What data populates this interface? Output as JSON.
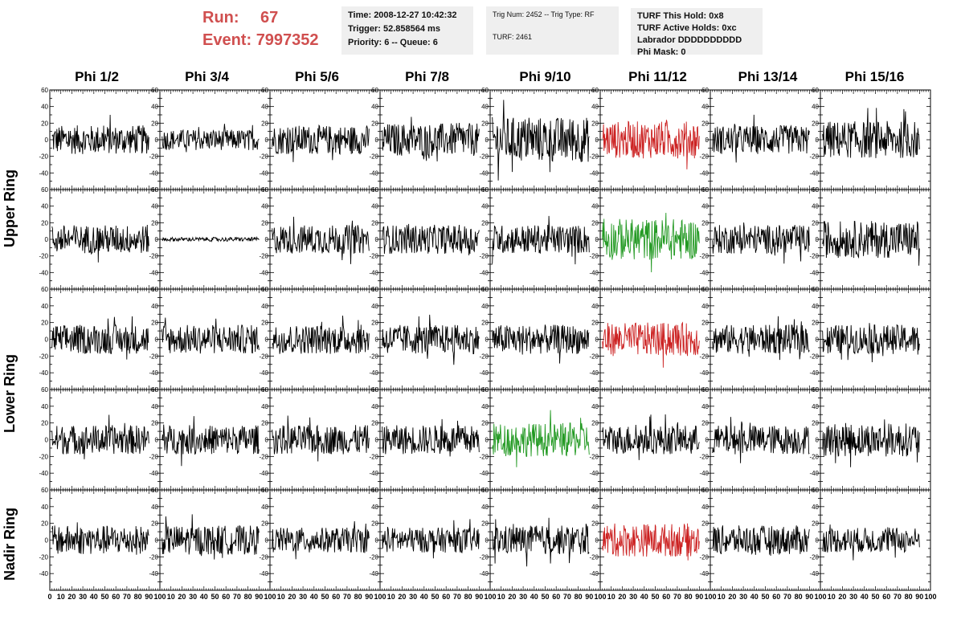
{
  "header": {
    "run_label": "Run:",
    "run_value": "67",
    "event_label": "Event:",
    "event_value": "7997352",
    "time": "Time: 2008-12-27 10:42:32",
    "trigger": "Trigger: 52.858564 ms",
    "priority": "Priority: 6 -- Queue: 6",
    "trig_num": "Trig Num: 2452 -- Trig Type: RF",
    "turf": "TURF: 2461",
    "turf_hold": "TURF This Hold: 0x8",
    "turf_active": "TURF Active Holds: 0xc",
    "labrador": "Labrador DDDDDDDDDD",
    "phi_mask": "Phi Mask: 0"
  },
  "columns": [
    "Phi 1/2",
    "Phi 3/4",
    "Phi 5/6",
    "Phi 7/8",
    "Phi 9/10",
    "Phi 11/12",
    "Phi 13/14",
    "Phi 15/16"
  ],
  "rings": [
    "Upper Ring",
    "Lower Ring",
    "Nadir Ring"
  ],
  "colors": {
    "red": "#cc2222",
    "green": "#229922",
    "black": "#000000",
    "header_red": "#d04f4f"
  },
  "chart_data": {
    "type": "line",
    "layout": "grid of waveform panels, 8 columns x 5 rows",
    "ylim": [
      -60,
      60
    ],
    "xlim": [
      0,
      100
    ],
    "y_ticks": [
      -40,
      -20,
      0,
      20,
      40,
      60
    ],
    "x_ticks": [
      0,
      10,
      20,
      30,
      40,
      50,
      60,
      70,
      80,
      90,
      100
    ],
    "highlight": [
      {
        "row": 0,
        "col": 5,
        "color": "red"
      },
      {
        "row": 1,
        "col": 5,
        "color": "green"
      },
      {
        "row": 2,
        "col": 5,
        "color": "red"
      },
      {
        "row": 3,
        "col": 4,
        "color": "green"
      },
      {
        "row": 4,
        "col": 5,
        "color": "red"
      }
    ],
    "panels_amplitude": [
      [
        14,
        10,
        14,
        16,
        22,
        18,
        14,
        18
      ],
      [
        14,
        2,
        14,
        14,
        14,
        20,
        14,
        18
      ],
      [
        14,
        14,
        14,
        14,
        14,
        16,
        14,
        14
      ],
      [
        14,
        14,
        14,
        14,
        16,
        14,
        14,
        16
      ],
      [
        14,
        14,
        12,
        12,
        14,
        16,
        14,
        12
      ]
    ]
  }
}
